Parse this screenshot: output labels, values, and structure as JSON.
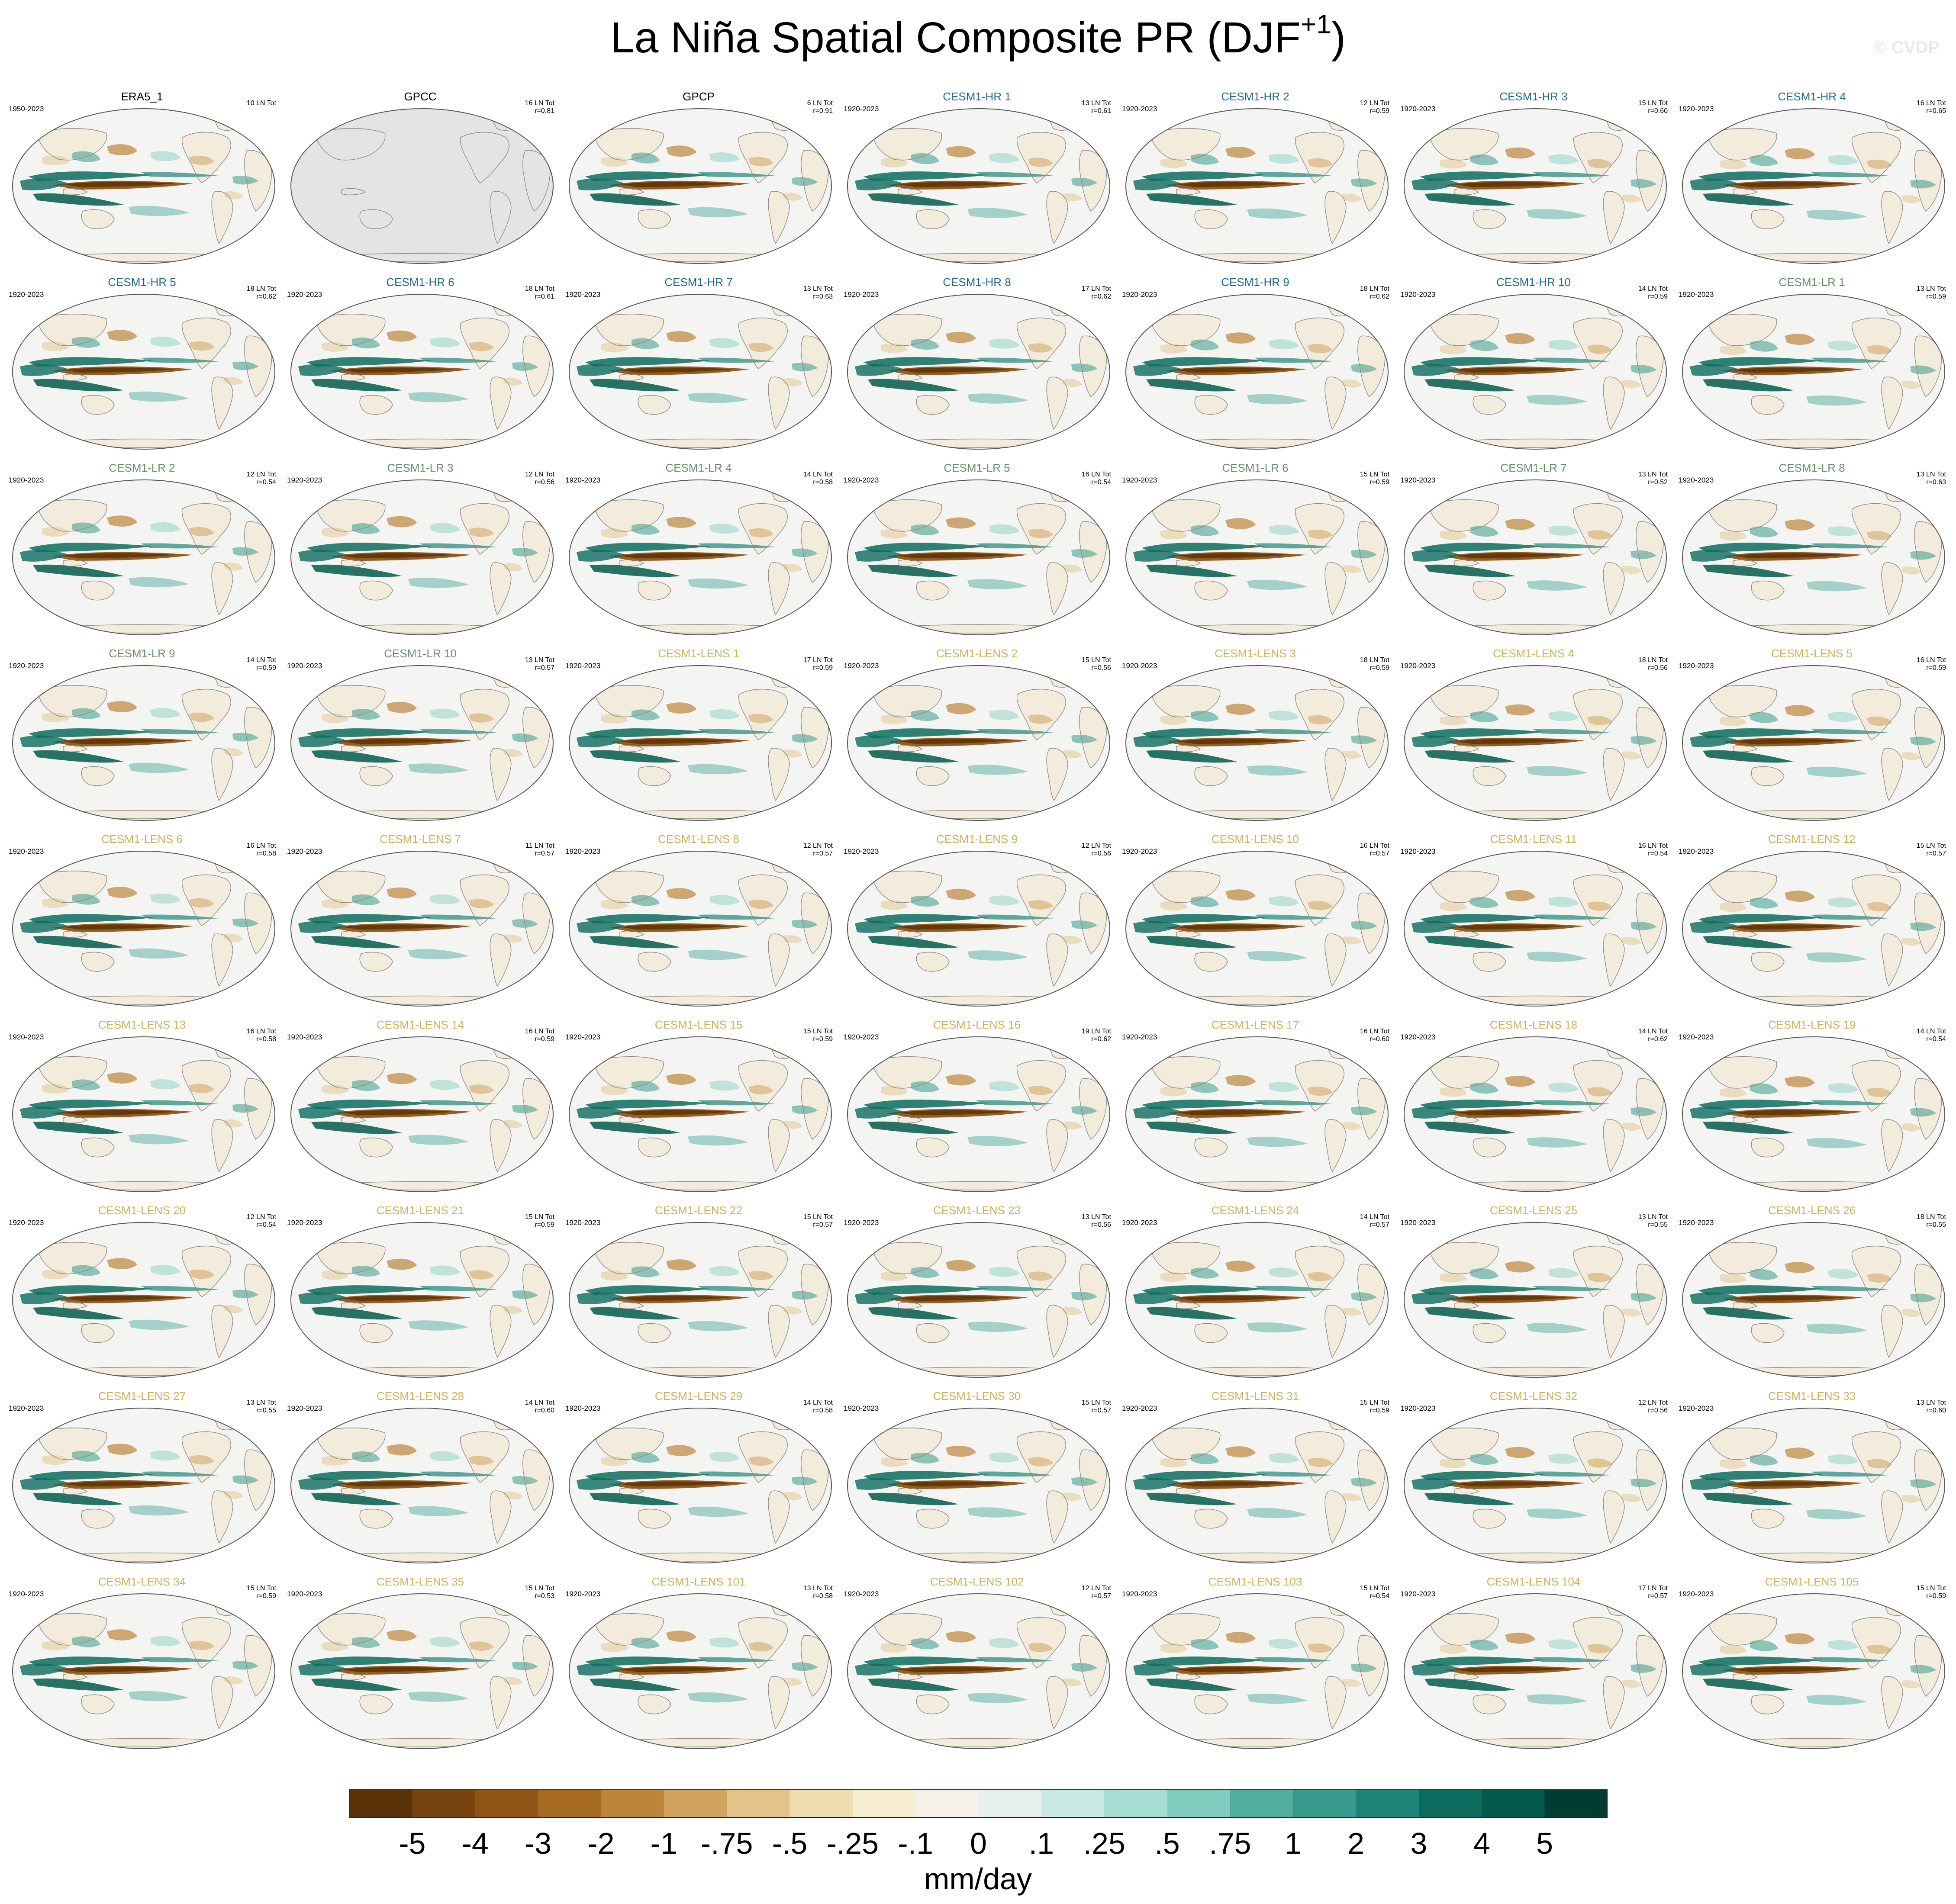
{
  "figure": {
    "title_main": "La Niña Spatial Composite PR (DJF",
    "title_sup": "+1",
    "title_close": ")",
    "watermark": "© CVDP"
  },
  "panels": [
    {
      "title": "ERA5_1",
      "years": "1950-2023",
      "count": "10 LN Tot",
      "r": "",
      "kind": "obs"
    },
    {
      "title": "GPCC",
      "years": "",
      "count": "16 LN Tot",
      "r": "r=0.81",
      "kind": "gpcc"
    },
    {
      "title": "GPCP",
      "years": "",
      "count": "6 LN Tot",
      "r": "r=0.91",
      "kind": "obs"
    },
    {
      "title": "CESM1-HR 1",
      "years": "1920-2023",
      "count": "13 LN Tot",
      "r": "r=0.61",
      "kind": "hr"
    },
    {
      "title": "CESM1-HR 2",
      "years": "1920-2023",
      "count": "12 LN Tot",
      "r": "r=0.59",
      "kind": "hr"
    },
    {
      "title": "CESM1-HR 3",
      "years": "1920-2023",
      "count": "15 LN Tot",
      "r": "r=0.60",
      "kind": "hr"
    },
    {
      "title": "CESM1-HR 4",
      "years": "1920-2023",
      "count": "16 LN Tot",
      "r": "r=0.65",
      "kind": "hr"
    },
    {
      "title": "CESM1-HR 5",
      "years": "1920-2023",
      "count": "18 LN Tot",
      "r": "r=0.62",
      "kind": "hr"
    },
    {
      "title": "CESM1-HR 6",
      "years": "1920-2023",
      "count": "18 LN Tot",
      "r": "r=0.61",
      "kind": "hr"
    },
    {
      "title": "CESM1-HR 7",
      "years": "1920-2023",
      "count": "13 LN Tot",
      "r": "r=0.63",
      "kind": "hr"
    },
    {
      "title": "CESM1-HR 8",
      "years": "1920-2023",
      "count": "17 LN Tot",
      "r": "r=0.62",
      "kind": "hr"
    },
    {
      "title": "CESM1-HR 9",
      "years": "1920-2023",
      "count": "18 LN Tot",
      "r": "r=0.62",
      "kind": "hr"
    },
    {
      "title": "CESM1-HR 10",
      "years": "1920-2023",
      "count": "14 LN Tot",
      "r": "r=0.59",
      "kind": "hr"
    },
    {
      "title": "CESM1-LR 1",
      "years": "1920-2023",
      "count": "13 LN Tot",
      "r": "r=0.59",
      "kind": "lr"
    },
    {
      "title": "CESM1-LR 2",
      "years": "1920-2023",
      "count": "12 LN Tot",
      "r": "r=0.54",
      "kind": "lr"
    },
    {
      "title": "CESM1-LR 3",
      "years": "1920-2023",
      "count": "12 LN Tot",
      "r": "r=0.56",
      "kind": "lr"
    },
    {
      "title": "CESM1-LR 4",
      "years": "1920-2023",
      "count": "14 LN Tot",
      "r": "r=0.58",
      "kind": "lr"
    },
    {
      "title": "CESM1-LR 5",
      "years": "1920-2023",
      "count": "16 LN Tot",
      "r": "r=0.54",
      "kind": "lr"
    },
    {
      "title": "CESM1-LR 6",
      "years": "1920-2023",
      "count": "15 LN Tot",
      "r": "r=0.59",
      "kind": "lr"
    },
    {
      "title": "CESM1-LR 7",
      "years": "1920-2023",
      "count": "13 LN Tot",
      "r": "r=0.52",
      "kind": "lr"
    },
    {
      "title": "CESM1-LR 8",
      "years": "1920-2023",
      "count": "13 LN Tot",
      "r": "r=0.63",
      "kind": "lr"
    },
    {
      "title": "CESM1-LR 9",
      "years": "1920-2023",
      "count": "14 LN Tot",
      "r": "r=0.59",
      "kind": "lr"
    },
    {
      "title": "CESM1-LR 10",
      "years": "1920-2023",
      "count": "13 LN Tot",
      "r": "r=0.57",
      "kind": "lr"
    },
    {
      "title": "CESM1-LENS 1",
      "years": "1920-2023",
      "count": "17 LN Tot",
      "r": "r=0.59",
      "kind": "lens"
    },
    {
      "title": "CESM1-LENS 2",
      "years": "1920-2023",
      "count": "15 LN Tot",
      "r": "r=0.56",
      "kind": "lens"
    },
    {
      "title": "CESM1-LENS 3",
      "years": "1920-2023",
      "count": "18 LN Tot",
      "r": "r=0.59",
      "kind": "lens"
    },
    {
      "title": "CESM1-LENS 4",
      "years": "1920-2023",
      "count": "18 LN Tot",
      "r": "r=0.56",
      "kind": "lens"
    },
    {
      "title": "CESM1-LENS 5",
      "years": "1920-2023",
      "count": "16 LN Tot",
      "r": "r=0.59",
      "kind": "lens"
    },
    {
      "title": "CESM1-LENS 6",
      "years": "1920-2023",
      "count": "16 LN Tot",
      "r": "r=0.58",
      "kind": "lens"
    },
    {
      "title": "CESM1-LENS 7",
      "years": "1920-2023",
      "count": "11 LN Tot",
      "r": "r=0.57",
      "kind": "lens"
    },
    {
      "title": "CESM1-LENS 8",
      "years": "1920-2023",
      "count": "12 LN Tot",
      "r": "r=0.57",
      "kind": "lens"
    },
    {
      "title": "CESM1-LENS 9",
      "years": "1920-2023",
      "count": "12 LN Tot",
      "r": "r=0.56",
      "kind": "lens"
    },
    {
      "title": "CESM1-LENS 10",
      "years": "1920-2023",
      "count": "16 LN Tot",
      "r": "r=0.57",
      "kind": "lens"
    },
    {
      "title": "CESM1-LENS 11",
      "years": "1920-2023",
      "count": "16 LN Tot",
      "r": "r=0.54",
      "kind": "lens"
    },
    {
      "title": "CESM1-LENS 12",
      "years": "1920-2023",
      "count": "15 LN Tot",
      "r": "r=0.57",
      "kind": "lens"
    },
    {
      "title": "CESM1-LENS 13",
      "years": "1920-2023",
      "count": "16 LN Tot",
      "r": "r=0.58",
      "kind": "lens"
    },
    {
      "title": "CESM1-LENS 14",
      "years": "1920-2023",
      "count": "16 LN Tot",
      "r": "r=0.59",
      "kind": "lens"
    },
    {
      "title": "CESM1-LENS 15",
      "years": "1920-2023",
      "count": "15 LN Tot",
      "r": "r=0.59",
      "kind": "lens"
    },
    {
      "title": "CESM1-LENS 16",
      "years": "1920-2023",
      "count": "19 LN Tot",
      "r": "r=0.62",
      "kind": "lens"
    },
    {
      "title": "CESM1-LENS 17",
      "years": "1920-2023",
      "count": "16 LN Tot",
      "r": "r=0.60",
      "kind": "lens"
    },
    {
      "title": "CESM1-LENS 18",
      "years": "1920-2023",
      "count": "14 LN Tot",
      "r": "r=0.62",
      "kind": "lens"
    },
    {
      "title": "CESM1-LENS 19",
      "years": "1920-2023",
      "count": "14 LN Tot",
      "r": "r=0.54",
      "kind": "lens"
    },
    {
      "title": "CESM1-LENS 20",
      "years": "1920-2023",
      "count": "12 LN Tot",
      "r": "r=0.54",
      "kind": "lens"
    },
    {
      "title": "CESM1-LENS 21",
      "years": "1920-2023",
      "count": "15 LN Tot",
      "r": "r=0.59",
      "kind": "lens"
    },
    {
      "title": "CESM1-LENS 22",
      "years": "1920-2023",
      "count": "15 LN Tot",
      "r": "r=0.57",
      "kind": "lens"
    },
    {
      "title": "CESM1-LENS 23",
      "years": "1920-2023",
      "count": "13 LN Tot",
      "r": "r=0.56",
      "kind": "lens"
    },
    {
      "title": "CESM1-LENS 24",
      "years": "1920-2023",
      "count": "14 LN Tot",
      "r": "r=0.57",
      "kind": "lens"
    },
    {
      "title": "CESM1-LENS 25",
      "years": "1920-2023",
      "count": "13 LN Tot",
      "r": "r=0.55",
      "kind": "lens"
    },
    {
      "title": "CESM1-LENS 26",
      "years": "1920-2023",
      "count": "18 LN Tot",
      "r": "r=0.55",
      "kind": "lens"
    },
    {
      "title": "CESM1-LENS 27",
      "years": "1920-2023",
      "count": "13 LN Tot",
      "r": "r=0.55",
      "kind": "lens"
    },
    {
      "title": "CESM1-LENS 28",
      "years": "1920-2023",
      "count": "14 LN Tot",
      "r": "r=0.60",
      "kind": "lens"
    },
    {
      "title": "CESM1-LENS 29",
      "years": "1920-2023",
      "count": "14 LN Tot",
      "r": "r=0.58",
      "kind": "lens"
    },
    {
      "title": "CESM1-LENS 30",
      "years": "1920-2023",
      "count": "15 LN Tot",
      "r": "r=0.57",
      "kind": "lens"
    },
    {
      "title": "CESM1-LENS 31",
      "years": "1920-2023",
      "count": "15 LN Tot",
      "r": "r=0.59",
      "kind": "lens"
    },
    {
      "title": "CESM1-LENS 32",
      "years": "1920-2023",
      "count": "12 LN Tot",
      "r": "r=0.56",
      "kind": "lens"
    },
    {
      "title": "CESM1-LENS 33",
      "years": "1920-2023",
      "count": "13 LN Tot",
      "r": "r=0.60",
      "kind": "lens"
    },
    {
      "title": "CESM1-LENS 34",
      "years": "1920-2023",
      "count": "15 LN Tot",
      "r": "r=0.59",
      "kind": "lens"
    },
    {
      "title": "CESM1-LENS 35",
      "years": "1920-2023",
      "count": "15 LN Tot",
      "r": "r=0.53",
      "kind": "lens"
    },
    {
      "title": "CESM1-LENS 101",
      "years": "1920-2023",
      "count": "13 LN Tot",
      "r": "r=0.58",
      "kind": "lens"
    },
    {
      "title": "CESM1-LENS 102",
      "years": "1920-2023",
      "count": "12 LN Tot",
      "r": "r=0.57",
      "kind": "lens"
    },
    {
      "title": "CESM1-LENS 103",
      "years": "1920-2023",
      "count": "15 LN Tot",
      "r": "r=0.54",
      "kind": "lens"
    },
    {
      "title": "CESM1-LENS 104",
      "years": "1920-2023",
      "count": "17 LN Tot",
      "r": "r=0.57",
      "kind": "lens"
    },
    {
      "title": "CESM1-LENS 105",
      "years": "1920-2023",
      "count": "15 LN Tot",
      "r": "r=0.59",
      "kind": "lens"
    }
  ],
  "colorbar": {
    "units": "mm/day",
    "labels": [
      "-5",
      "-4",
      "-3",
      "-2",
      "-1",
      "-.75",
      "-.5",
      "-.25",
      "-.1",
      "0",
      ".1",
      ".25",
      ".5",
      ".75",
      "1",
      "2",
      "3",
      "4",
      "5"
    ],
    "colors": [
      "#5a3208",
      "#774410",
      "#8e5315",
      "#a76a22",
      "#bd853a",
      "#d0a35f",
      "#e2c488",
      "#eedcb0",
      "#f6eccf",
      "#f5f1e8",
      "#e6f0ee",
      "#c9e9e3",
      "#a6ddd3",
      "#7fcbbd",
      "#52ada0",
      "#379a8c",
      "#1f8477",
      "#0c6c5f",
      "#04594c",
      "#003c30"
    ]
  },
  "colors": {
    "obs_title": "#000000",
    "hr_title": "#1f6b8c",
    "lr_title": "#6a8e6a",
    "lens_title": "#c9b35a",
    "land": "#f3ecdc",
    "ocean": "#f4f5f2",
    "gpcc_land": "#e4e4e4",
    "coast": "#8a8a8a"
  }
}
